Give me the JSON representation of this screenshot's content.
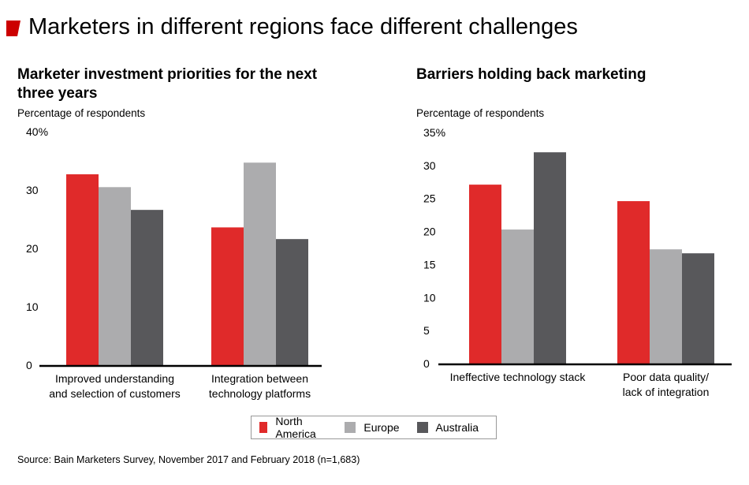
{
  "header": {
    "title": "Marketers in different regions face different challenges",
    "accent_color": "#cc0000"
  },
  "colors": {
    "north_america": "#e02a2a",
    "europe": "#acacae",
    "australia": "#58585b"
  },
  "legend": [
    {
      "label": "North America",
      "color": "#e02a2a"
    },
    {
      "label": "Europe",
      "color": "#acacae"
    },
    {
      "label": "Australia",
      "color": "#58585b"
    }
  ],
  "source": "Source: Bain Marketers Survey, November 2017 and February 2018 (n=1,683)",
  "chart_data": [
    {
      "type": "bar",
      "title_line1": "Marketer investment priorities for the next",
      "title_line2": "three years",
      "ylabel": "Percentage of respondents",
      "ylim": [
        0,
        40
      ],
      "yticks": [
        "40%",
        "30",
        "20",
        "10",
        "0"
      ],
      "categories": [
        [
          "Improved understanding",
          "and selection of customers"
        ],
        [
          "Integration between",
          "technology platforms"
        ]
      ],
      "series": [
        {
          "name": "North America",
          "values": [
            32.7,
            23.6
          ]
        },
        {
          "name": "Europe",
          "values": [
            30.5,
            34.7
          ]
        },
        {
          "name": "Australia",
          "values": [
            26.6,
            21.6
          ]
        }
      ],
      "grid": false
    },
    {
      "type": "bar",
      "title_line1": "Barriers holding back marketing",
      "ylabel": "Percentage of respondents",
      "ylim": [
        0,
        35
      ],
      "yticks": [
        "35%",
        "30",
        "25",
        "20",
        "15",
        "10",
        "5",
        "0"
      ],
      "categories": [
        [
          "Ineffective technology stack"
        ],
        [
          "Poor data quality/",
          "lack of integration"
        ]
      ],
      "series": [
        {
          "name": "North America",
          "values": [
            27.1,
            24.6
          ]
        },
        {
          "name": "Europe",
          "values": [
            20.3,
            17.3
          ]
        },
        {
          "name": "Australia",
          "values": [
            32.0,
            16.7
          ]
        }
      ],
      "grid": false
    }
  ]
}
